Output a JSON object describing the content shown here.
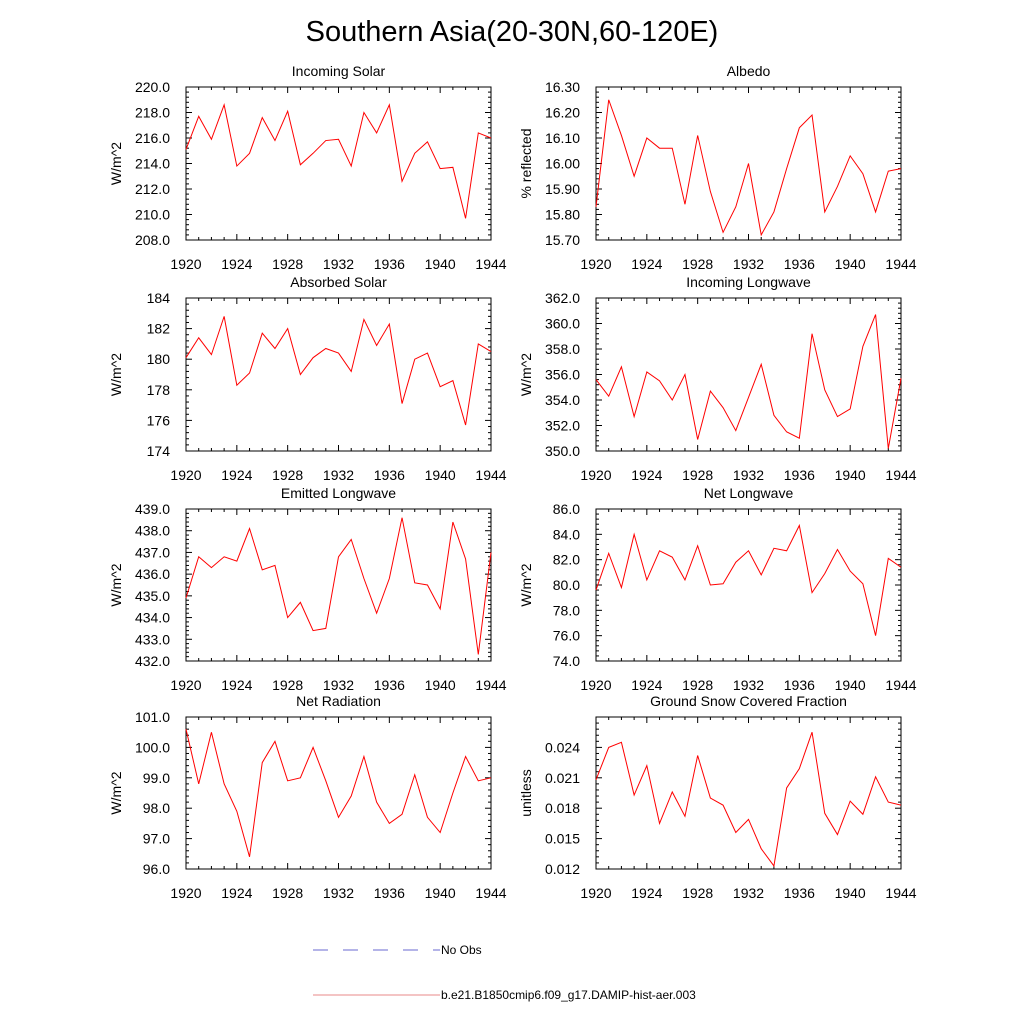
{
  "figure": {
    "title": "Southern Asia(20-30N,60-120E)",
    "legend": [
      {
        "label": "No Obs",
        "style": "dashed",
        "color": "#6a6ad0"
      },
      {
        "label": "b.e21.B1850cmip6.f09_g17.DAMIP-hist-aer.003",
        "style": "solid",
        "color": "#e8888a"
      }
    ]
  },
  "chart_data": [
    {
      "type": "line",
      "title": "Incoming Solar",
      "xlabel": "",
      "ylabel": "W/m^2",
      "xlim": [
        1920,
        1944
      ],
      "ylim": [
        208,
        220
      ],
      "xticks": [
        "1920",
        "1924",
        "1928",
        "1932",
        "1936",
        "1940",
        "1944"
      ],
      "yticks": [
        "208.0",
        "210.0",
        "212.0",
        "214.0",
        "216.0",
        "218.0",
        "220.0"
      ],
      "series": [
        {
          "color": "#ff0000",
          "x": [
            1920,
            1921,
            1922,
            1923,
            1924,
            1925,
            1926,
            1927,
            1928,
            1929,
            1930,
            1931,
            1932,
            1933,
            1934,
            1935,
            1936,
            1937,
            1938,
            1939,
            1940,
            1941,
            1942,
            1943,
            1944
          ],
          "y": [
            215.1,
            217.7,
            215.9,
            218.6,
            213.8,
            214.8,
            217.6,
            215.8,
            218.1,
            213.9,
            214.8,
            215.8,
            215.9,
            213.8,
            218.0,
            216.4,
            218.6,
            212.6,
            214.8,
            215.7,
            213.6,
            213.7,
            209.7,
            216.4,
            216.0
          ]
        }
      ]
    },
    {
      "type": "line",
      "title": "Albedo",
      "xlabel": "",
      "ylabel": "% reflected",
      "xlim": [
        1920,
        1944
      ],
      "ylim": [
        15.7,
        16.3
      ],
      "xticks": [
        "1920",
        "1924",
        "1928",
        "1932",
        "1936",
        "1940",
        "1944"
      ],
      "yticks": [
        "15.70",
        "15.80",
        "15.90",
        "16.00",
        "16.10",
        "16.20",
        "16.30"
      ],
      "series": [
        {
          "color": "#ff0000",
          "x": [
            1920,
            1921,
            1922,
            1923,
            1924,
            1925,
            1926,
            1927,
            1928,
            1929,
            1930,
            1931,
            1932,
            1933,
            1934,
            1935,
            1936,
            1937,
            1938,
            1939,
            1940,
            1941,
            1942,
            1943,
            1944
          ],
          "y": [
            15.83,
            16.25,
            16.11,
            15.95,
            16.1,
            16.06,
            16.06,
            15.84,
            16.11,
            15.89,
            15.73,
            15.83,
            16.0,
            15.72,
            15.81,
            15.98,
            16.14,
            16.19,
            15.81,
            15.91,
            16.03,
            15.96,
            15.81,
            15.97,
            15.98
          ]
        }
      ]
    },
    {
      "type": "line",
      "title": "Absorbed Solar",
      "xlabel": "",
      "ylabel": "W/m^2",
      "xlim": [
        1920,
        1944
      ],
      "ylim": [
        174,
        184
      ],
      "xticks": [
        "1920",
        "1924",
        "1928",
        "1932",
        "1936",
        "1940",
        "1944"
      ],
      "yticks": [
        "174",
        "176",
        "178",
        "180",
        "182",
        "184"
      ],
      "series": [
        {
          "color": "#ff0000",
          "x": [
            1920,
            1921,
            1922,
            1923,
            1924,
            1925,
            1926,
            1927,
            1928,
            1929,
            1930,
            1931,
            1932,
            1933,
            1934,
            1935,
            1936,
            1937,
            1938,
            1939,
            1940,
            1941,
            1942,
            1943,
            1944
          ],
          "y": [
            180.1,
            181.4,
            180.3,
            182.8,
            178.3,
            179.1,
            181.7,
            180.7,
            182.0,
            179.0,
            180.1,
            180.7,
            180.4,
            179.2,
            182.6,
            180.9,
            182.3,
            177.1,
            180.0,
            180.4,
            178.2,
            178.6,
            175.7,
            181.0,
            180.5
          ]
        }
      ]
    },
    {
      "type": "line",
      "title": "Incoming Longwave",
      "xlabel": "",
      "ylabel": "W/m^2",
      "xlim": [
        1920,
        1944
      ],
      "ylim": [
        350,
        362
      ],
      "xticks": [
        "1920",
        "1924",
        "1928",
        "1932",
        "1936",
        "1940",
        "1944"
      ],
      "yticks": [
        "350.0",
        "352.0",
        "354.0",
        "356.0",
        "358.0",
        "360.0",
        "362.0"
      ],
      "series": [
        {
          "color": "#ff0000",
          "x": [
            1920,
            1921,
            1922,
            1923,
            1924,
            1925,
            1926,
            1927,
            1928,
            1929,
            1930,
            1931,
            1932,
            1933,
            1934,
            1935,
            1936,
            1937,
            1938,
            1939,
            1940,
            1941,
            1942,
            1943,
            1944
          ],
          "y": [
            355.6,
            354.3,
            356.6,
            352.7,
            356.2,
            355.5,
            354.0,
            356.0,
            350.9,
            354.7,
            353.4,
            351.6,
            354.2,
            356.8,
            352.8,
            351.5,
            351.0,
            359.2,
            354.8,
            352.7,
            353.3,
            358.2,
            360.7,
            350.2,
            355.7
          ]
        }
      ]
    },
    {
      "type": "line",
      "title": "Emitted Longwave",
      "xlabel": "",
      "ylabel": "W/m^2",
      "xlim": [
        1920,
        1944
      ],
      "ylim": [
        432,
        439
      ],
      "xticks": [
        "1920",
        "1924",
        "1928",
        "1932",
        "1936",
        "1940",
        "1944"
      ],
      "yticks": [
        "432.0",
        "433.0",
        "434.0",
        "435.0",
        "436.0",
        "437.0",
        "438.0",
        "439.0"
      ],
      "series": [
        {
          "color": "#ff0000",
          "x": [
            1920,
            1921,
            1922,
            1923,
            1924,
            1925,
            1926,
            1927,
            1928,
            1929,
            1930,
            1931,
            1932,
            1933,
            1934,
            1935,
            1936,
            1937,
            1938,
            1939,
            1940,
            1941,
            1942,
            1943,
            1944
          ],
          "y": [
            434.9,
            436.8,
            436.3,
            436.8,
            436.6,
            438.1,
            436.2,
            436.4,
            434.0,
            434.7,
            433.4,
            433.5,
            436.8,
            437.6,
            435.8,
            434.2,
            435.8,
            438.6,
            435.6,
            435.5,
            434.4,
            438.4,
            436.7,
            432.3,
            437.0
          ]
        }
      ]
    },
    {
      "type": "line",
      "title": "Net Longwave",
      "xlabel": "",
      "ylabel": "W/m^2",
      "xlim": [
        1920,
        1944
      ],
      "ylim": [
        74,
        86
      ],
      "xticks": [
        "1920",
        "1924",
        "1928",
        "1932",
        "1936",
        "1940",
        "1944"
      ],
      "yticks": [
        "74.0",
        "76.0",
        "78.0",
        "80.0",
        "82.0",
        "84.0",
        "86.0"
      ],
      "series": [
        {
          "color": "#ff0000",
          "x": [
            1920,
            1921,
            1922,
            1923,
            1924,
            1925,
            1926,
            1927,
            1928,
            1929,
            1930,
            1931,
            1932,
            1933,
            1934,
            1935,
            1936,
            1937,
            1938,
            1939,
            1940,
            1941,
            1942,
            1943,
            1944
          ],
          "y": [
            79.6,
            82.5,
            79.8,
            84.0,
            80.4,
            82.7,
            82.2,
            80.4,
            83.1,
            80.0,
            80.1,
            81.8,
            82.7,
            80.8,
            82.9,
            82.7,
            84.7,
            79.4,
            80.9,
            82.8,
            81.1,
            80.1,
            76.0,
            82.1,
            81.4
          ]
        }
      ]
    },
    {
      "type": "line",
      "title": "Net Radiation",
      "xlabel": "",
      "ylabel": "W/m^2",
      "xlim": [
        1920,
        1944
      ],
      "ylim": [
        96,
        101
      ],
      "xticks": [
        "1920",
        "1924",
        "1928",
        "1932",
        "1936",
        "1940",
        "1944"
      ],
      "yticks": [
        "96.0",
        "97.0",
        "98.0",
        "99.0",
        "100.0",
        "101.0"
      ],
      "series": [
        {
          "color": "#ff0000",
          "x": [
            1920,
            1921,
            1922,
            1923,
            1924,
            1925,
            1926,
            1927,
            1928,
            1929,
            1930,
            1931,
            1932,
            1933,
            1934,
            1935,
            1936,
            1937,
            1938,
            1939,
            1940,
            1941,
            1942,
            1943,
            1944
          ],
          "y": [
            100.6,
            98.8,
            100.5,
            98.8,
            97.9,
            96.4,
            99.5,
            100.2,
            98.9,
            99.0,
            100.0,
            98.9,
            97.7,
            98.4,
            99.7,
            98.2,
            97.5,
            97.8,
            99.1,
            97.7,
            97.2,
            98.5,
            99.7,
            98.9,
            99.0
          ]
        }
      ]
    },
    {
      "type": "line",
      "title": "Ground Snow Covered Fraction",
      "xlabel": "",
      "ylabel": "unitless",
      "xlim": [
        1920,
        1944
      ],
      "ylim": [
        0.012,
        0.027
      ],
      "xticks": [
        "1920",
        "1924",
        "1928",
        "1932",
        "1936",
        "1940",
        "1944"
      ],
      "yticks": [
        "0.012",
        "0.015",
        "0.018",
        "0.021",
        "0.024"
      ],
      "series": [
        {
          "color": "#ff0000",
          "x": [
            1920,
            1921,
            1922,
            1923,
            1924,
            1925,
            1926,
            1927,
            1928,
            1929,
            1930,
            1931,
            1932,
            1933,
            1934,
            1935,
            1936,
            1937,
            1938,
            1939,
            1940,
            1941,
            1942,
            1943,
            1944
          ],
          "y": [
            0.0208,
            0.024,
            0.0245,
            0.0193,
            0.0222,
            0.0165,
            0.0196,
            0.0172,
            0.0232,
            0.019,
            0.0183,
            0.0156,
            0.0169,
            0.014,
            0.0123,
            0.02,
            0.0219,
            0.0255,
            0.0175,
            0.0154,
            0.0187,
            0.0174,
            0.0211,
            0.0186,
            0.0183
          ]
        }
      ]
    }
  ]
}
